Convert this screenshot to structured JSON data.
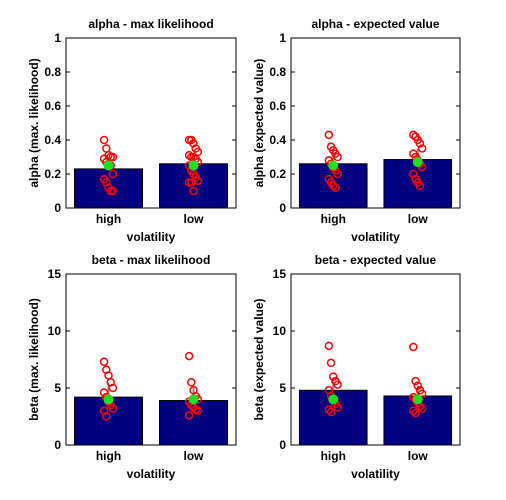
{
  "colors": {
    "bar": "#000080",
    "errorbar": "#888888",
    "point": "#ff0000",
    "median": "#22dd22",
    "axes": "#000000",
    "background": "#ffffff"
  },
  "chart_data": [
    {
      "type": "bar",
      "title": "alpha - max likelihood",
      "xlabel": "volatility",
      "ylabel": "alpha (max. likelihood)",
      "categories": [
        "high",
        "low"
      ],
      "ylim": [
        0,
        1
      ],
      "yticks": [
        "0",
        "0.2",
        "0.4",
        "0.6",
        "0.8",
        "1"
      ],
      "ytick_values": [
        0,
        0.2,
        0.4,
        0.6,
        0.8,
        1
      ],
      "values": [
        0.23,
        0.26
      ],
      "median": [
        0.25,
        0.25
      ],
      "errorbar_high": [
        0.3,
        0.3
      ],
      "points": [
        [
          0.4,
          0.35,
          0.31,
          0.3,
          0.3,
          0.29,
          0.27,
          0.25,
          0.25,
          0.2,
          0.17,
          0.15,
          0.12,
          0.1,
          0.1
        ],
        [
          0.4,
          0.4,
          0.38,
          0.35,
          0.33,
          0.31,
          0.3,
          0.3,
          0.29,
          0.27,
          0.25,
          0.22,
          0.2,
          0.18,
          0.16,
          0.15,
          0.15,
          0.1
        ]
      ]
    },
    {
      "type": "bar",
      "title": "alpha - expected value",
      "xlabel": "volatility",
      "ylabel": "alpha (expected value)",
      "categories": [
        "high",
        "low"
      ],
      "ylim": [
        0,
        1
      ],
      "yticks": [
        "0",
        "0.2",
        "0.4",
        "0.6",
        "0.8",
        "1"
      ],
      "ytick_values": [
        0,
        0.2,
        0.4,
        0.6,
        0.8,
        1
      ],
      "values": [
        0.26,
        0.285
      ],
      "median": [
        0.25,
        0.27
      ],
      "errorbar_high": [
        0.33,
        0.35
      ],
      "points": [
        [
          0.43,
          0.36,
          0.34,
          0.32,
          0.3,
          0.28,
          0.26,
          0.24,
          0.22,
          0.2,
          0.17,
          0.15,
          0.13,
          0.12
        ],
        [
          0.43,
          0.42,
          0.4,
          0.38,
          0.35,
          0.32,
          0.3,
          0.28,
          0.26,
          0.24,
          0.2,
          0.17,
          0.15,
          0.13
        ]
      ]
    },
    {
      "type": "bar",
      "title": "beta - max likelihood",
      "xlabel": "volatility",
      "ylabel": "beta (max. likelihood)",
      "categories": [
        "high",
        "low"
      ],
      "ylim": [
        0,
        15
      ],
      "yticks": [
        "0",
        "5",
        "10",
        "15"
      ],
      "ytick_values": [
        0,
        5,
        10,
        15
      ],
      "values": [
        4.2,
        3.9
      ],
      "median": [
        4.0,
        4.0
      ],
      "errorbar_high": [
        5.5,
        5.0
      ],
      "points": [
        [
          7.3,
          6.6,
          6.1,
          5.5,
          5.0,
          4.6,
          4.2,
          3.8,
          3.5,
          3.2,
          3.0,
          2.5
        ],
        [
          7.8,
          5.5,
          4.8,
          4.3,
          4.0,
          3.8,
          3.5,
          3.3,
          3.1,
          3.0,
          2.6
        ]
      ]
    },
    {
      "type": "bar",
      "title": "beta - expected value",
      "xlabel": "volatility",
      "ylabel": "beta (expected value)",
      "categories": [
        "high",
        "low"
      ],
      "ylim": [
        0,
        15
      ],
      "yticks": [
        "0",
        "5",
        "10",
        "15"
      ],
      "ytick_values": [
        0,
        5,
        10,
        15
      ],
      "values": [
        4.8,
        4.3
      ],
      "median": [
        4.0,
        4.0
      ],
      "errorbar_high": [
        5.8,
        5.2
      ],
      "points": [
        [
          8.7,
          7.2,
          6.0,
          5.6,
          5.3,
          4.8,
          4.3,
          4.0,
          3.6,
          3.3,
          3.1,
          2.9
        ],
        [
          8.6,
          5.6,
          5.2,
          4.8,
          4.5,
          4.2,
          4.0,
          3.7,
          3.4,
          3.2,
          3.0,
          2.8
        ]
      ]
    }
  ]
}
